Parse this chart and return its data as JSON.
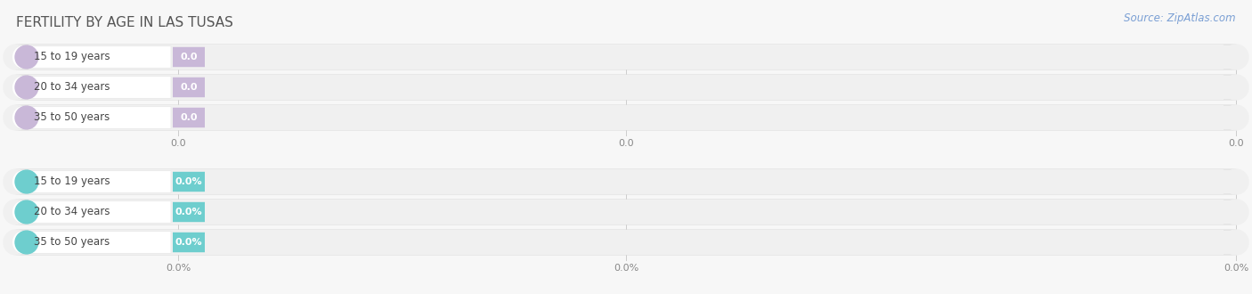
{
  "title": "FERTILITY BY AGE IN LAS TUSAS",
  "source": "Source: ZipAtlas.com",
  "bg_color": "#f7f7f7",
  "section1_color": "#c9b8d8",
  "section2_color": "#6ecece",
  "section1_labels": [
    "15 to 19 years",
    "20 to 34 years",
    "35 to 50 years"
  ],
  "section2_labels": [
    "15 to 19 years",
    "20 to 34 years",
    "35 to 50 years"
  ],
  "section1_val_labels": [
    "0.0",
    "0.0",
    "0.0"
  ],
  "section2_val_labels": [
    "0.0%",
    "0.0%",
    "0.0%"
  ],
  "tick_labels_s1": [
    "0.0",
    "0.0",
    "0.0"
  ],
  "tick_labels_s2": [
    "0.0%",
    "0.0%",
    "0.0%"
  ],
  "title_color": "#555555",
  "label_color": "#444444",
  "tick_color": "#888888",
  "source_color": "#7a9fd4",
  "bar_bg_color": "#eeeeee",
  "bar_inner_bg": "#ffffff",
  "title_fontsize": 11,
  "label_fontsize": 8.5,
  "value_fontsize": 8,
  "tick_fontsize": 8,
  "source_fontsize": 8.5
}
